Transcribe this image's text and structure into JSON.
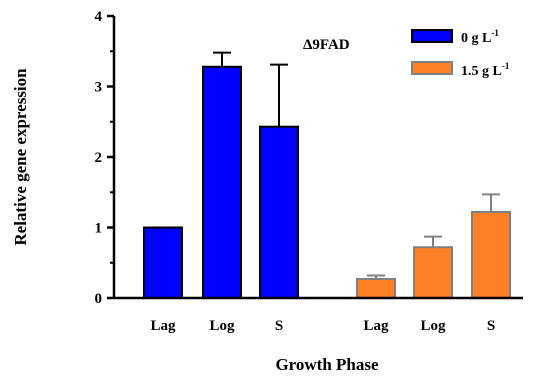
{
  "chart_data": {
    "type": "bar",
    "title": "Δ9FAD",
    "xlabel": "Growth Phase",
    "ylabel": "Relative gene expression",
    "ylim": [
      0,
      4
    ],
    "yticks": [
      "0",
      "1",
      "2",
      "3",
      "4"
    ],
    "grid": false,
    "legend_position": "top-right",
    "categories": [
      "Lag",
      "Log",
      "S"
    ],
    "series": [
      {
        "name": "0 g L",
        "superscript": "-1",
        "color": "#0000ff",
        "edge": "#000000",
        "values": [
          1.0,
          3.28,
          2.43
        ],
        "errors": [
          0.0,
          0.2,
          0.88
        ]
      },
      {
        "name": "1.5 g L",
        "superscript": "-1",
        "color": "#ff7f27",
        "edge": "#808080",
        "values": [
          0.27,
          0.72,
          1.22
        ],
        "errors": [
          0.05,
          0.15,
          0.25
        ]
      }
    ]
  }
}
